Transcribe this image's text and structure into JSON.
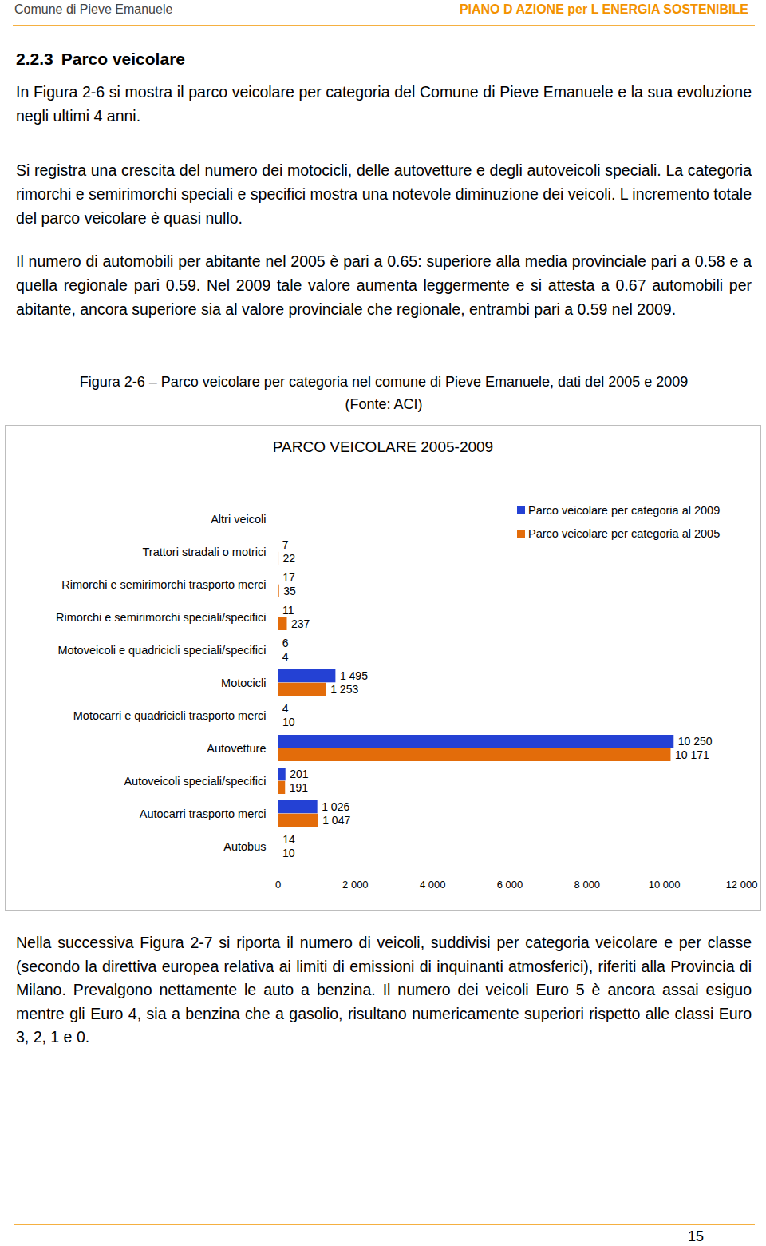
{
  "header": {
    "left": "Comune di Pieve Emanuele",
    "right": "PIANO D AZIONE per L ENERGIA SOSTENIBILE"
  },
  "section": {
    "number": "2.2.3",
    "title": "Parco veicolare"
  },
  "paragraphs": [
    "In Figura 2-6 si mostra il parco veicolare per categoria del Comune di Pieve Emanuele e la sua evoluzione negli ultimi 4 anni.",
    "Si registra una crescita del numero dei motocicli, delle autovetture e degli autoveicoli speciali. La categoria rimorchi e semirimorchi speciali e specifici mostra una notevole diminuzione dei veicoli. L incremento totale del parco veicolare è quasi nullo.",
    "Il numero di automobili per abitante nel 2005 è pari a 0.65: superiore alla media provinciale pari a 0.58 e a quella regionale pari 0.59. Nel 2009 tale valore aumenta leggermente e si attesta a 0.67 automobili per abitante, ancora superiore sia al valore provinciale che regionale, entrambi pari a 0.59 nel 2009."
  ],
  "caption": [
    "Figura 2-6 – Parco veicolare per categoria nel comune di Pieve Emanuele, dati del 2005 e 2009",
    "(Fonte: ACI)"
  ],
  "chart_data": {
    "type": "bar",
    "orientation": "horizontal",
    "title": "PARCO VEICOLARE 2005-2009",
    "categories": [
      "Altri veicoli",
      "Trattori stradali o motrici",
      "Rimorchi e semirimorchi trasporto merci",
      "Rimorchi e semirimorchi speciali/specifici",
      "Motoveicoli e quadricicli speciali/specifici",
      "Motocicli",
      "Motocarri e quadricicli trasporto merci",
      "Autovetture",
      "Autoveicoli speciali/specifici",
      "Autocarri trasporto merci",
      "Autobus"
    ],
    "series": [
      {
        "name": "Parco veicolare per categoria al 2009",
        "color": "#2441d4",
        "values": [
          null,
          7,
          17,
          11,
          6,
          1495,
          4,
          10250,
          201,
          1026,
          14
        ],
        "value_labels": [
          null,
          "7",
          "17",
          "11",
          "6",
          "1 495",
          "4",
          "10 250",
          "201",
          "1 026",
          "14"
        ]
      },
      {
        "name": "Parco veicolare per categoria al 2005",
        "color": "#e36c0a",
        "values": [
          null,
          22,
          35,
          237,
          4,
          1253,
          10,
          10171,
          191,
          1047,
          10
        ],
        "value_labels": [
          null,
          "22",
          "35",
          "237",
          "4",
          "1 253",
          "10",
          "10 171",
          "191",
          "1 047",
          "10"
        ]
      }
    ],
    "xlim": [
      0,
      12000
    ],
    "xticks": [
      0,
      {
        "value": 2000,
        "label": "2 000"
      },
      {
        "value": 4000,
        "label": "4 000"
      },
      {
        "value": 6000,
        "label": "6 000"
      },
      {
        "value": 8000,
        "label": "8 000"
      },
      {
        "value": 10000,
        "label": "10 000"
      },
      {
        "value": 12000,
        "label": "12 000"
      }
    ],
    "grid": false,
    "data_labels": true,
    "legend": "top-right"
  },
  "paragraphs_after": [
    "Nella successiva Figura 2-7 si riporta il numero di veicoli, suddivisi per categoria veicolare e per classe (secondo la direttiva europea relativa ai limiti di emissioni di inquinanti atmosferici), riferiti alla Provincia di Milano. Prevalgono nettamente le auto a benzina. Il numero dei veicoli Euro 5 è ancora assai esiguo mentre gli Euro 4, sia a benzina che a gasolio, risultano numericamente superiori rispetto alle classi Euro 3, 2, 1 e 0."
  ],
  "page_number": "15"
}
